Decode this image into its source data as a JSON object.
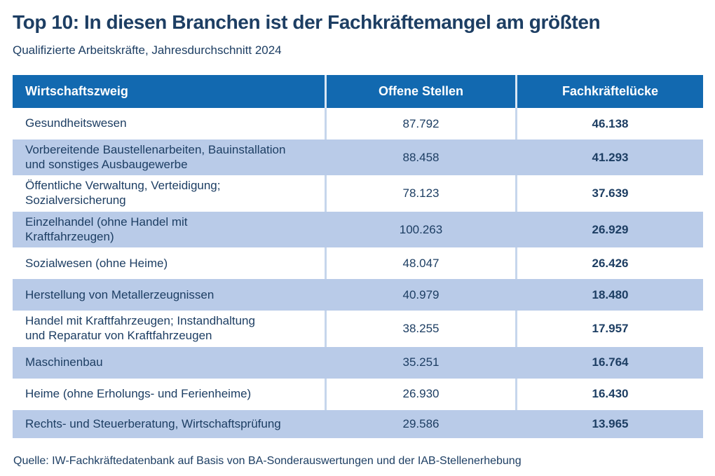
{
  "colors": {
    "header_bg": "#1269b0",
    "header_text": "#ffffff",
    "row_alt_bg": "#b9cbe8",
    "row_bg": "#ffffff",
    "text": "#1d3e63",
    "separator": "#c6d6ec"
  },
  "chart_data": {
    "type": "table",
    "title": "Top 10: In diesen Branchen ist der Fachkräftemangel am größten",
    "subtitle": "Qualifizierte Arbeitskräfte, Jahresdurchschnitt 2024",
    "columns": [
      "Wirtschaftszweig",
      "Offene Stellen",
      "Fachkräftelücke"
    ],
    "rows": [
      {
        "branch": "Gesundheitswesen",
        "offene_stellen": "87.792",
        "fachkraefteluecke": "46.138"
      },
      {
        "branch": "Vorbereitende Baustellenarbeiten, Bauinstallation\nund sonstiges Ausbaugewerbe",
        "offene_stellen": "88.458",
        "fachkraefteluecke": "41.293"
      },
      {
        "branch": "Öffentliche Verwaltung, Verteidigung;\nSozialversicherung",
        "offene_stellen": "78.123",
        "fachkraefteluecke": "37.639"
      },
      {
        "branch": "Einzelhandel (ohne Handel mit\nKraftfahrzeugen)",
        "offene_stellen": "100.263",
        "fachkraefteluecke": "26.929"
      },
      {
        "branch": "Sozialwesen (ohne Heime)",
        "offene_stellen": "48.047",
        "fachkraefteluecke": "26.426"
      },
      {
        "branch": "Herstellung von Metallerzeugnissen",
        "offene_stellen": "40.979",
        "fachkraefteluecke": "18.480"
      },
      {
        "branch": "Handel mit Kraftfahrzeugen; Instandhaltung\nund Reparatur von Kraftfahrzeugen",
        "offene_stellen": "38.255",
        "fachkraefteluecke": "17.957"
      },
      {
        "branch": "Maschinenbau",
        "offene_stellen": "35.251",
        "fachkraefteluecke": "16.764"
      },
      {
        "branch": "Heime (ohne Erholungs- und Ferienheime)",
        "offene_stellen": "26.930",
        "fachkraefteluecke": "16.430"
      },
      {
        "branch": "Rechts- und Steuerberatung, Wirtschaftsprüfung",
        "offene_stellen": "29.586",
        "fachkraefteluecke": "13.965"
      }
    ],
    "source": "Quelle: IW-Fachkräftedatenbank auf Basis von BA-Sonderauswertungen und der IAB-Stellenerhebung"
  }
}
